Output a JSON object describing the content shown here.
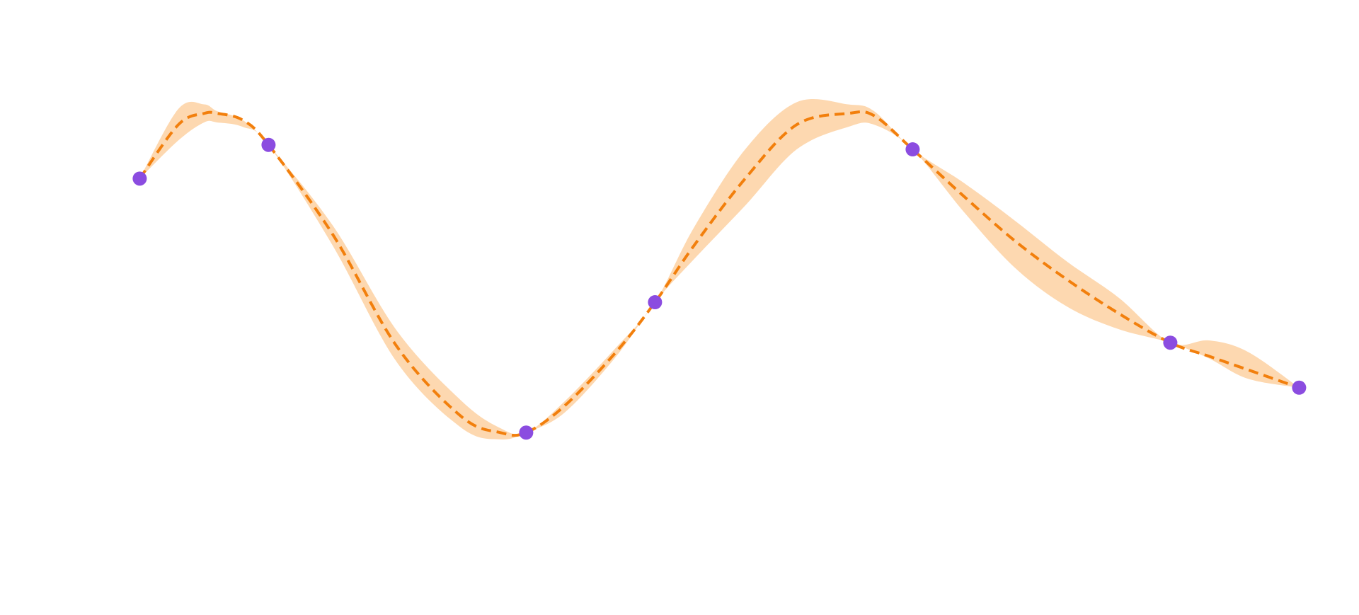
{
  "colors": {
    "band_fill": "#fdd8b0",
    "mean_line": "#f27f0c",
    "points": "#8b4ce0",
    "background": "#ffffff"
  },
  "chart_data": {
    "type": "line",
    "title": "",
    "xlabel": "",
    "ylabel": "",
    "axes_visible": false,
    "grid": false,
    "legend": "none",
    "xlim": [
      -0.35,
      4.65
    ],
    "ylim": [
      -1.3,
      1.25
    ],
    "series": [
      {
        "kind": "observations",
        "style": "markers",
        "x": [
          0,
          0.5,
          1.5,
          2,
          3,
          4,
          4.5
        ],
        "y": [
          0.55,
          0.7,
          -0.58,
          0,
          0.68,
          -0.18,
          -0.38
        ]
      },
      {
        "kind": "mean",
        "style": "dashed-line",
        "x": [
          0,
          0.15,
          0.25,
          0.3,
          0.4,
          0.5,
          0.75,
          1.0,
          1.25,
          1.4,
          1.5,
          1.65,
          1.85,
          2.0,
          2.15,
          2.35,
          2.55,
          2.75,
          2.85,
          3.0,
          3.2,
          3.4,
          3.6,
          3.8,
          4.0,
          4.15,
          4.3,
          4.5
        ],
        "y": [
          0.55,
          0.79,
          0.84,
          0.84,
          0.81,
          0.7,
          0.3,
          -0.2,
          -0.51,
          -0.58,
          -0.58,
          -0.46,
          -0.22,
          0.0,
          0.25,
          0.55,
          0.79,
          0.84,
          0.83,
          0.68,
          0.47,
          0.27,
          0.1,
          -0.05,
          -0.18,
          -0.24,
          -0.3,
          -0.38
        ]
      },
      {
        "kind": "confidence-band",
        "style": "filled-area",
        "x": [
          0,
          0.15,
          0.25,
          0.3,
          0.4,
          0.5,
          0.75,
          1.0,
          1.25,
          1.4,
          1.5,
          1.65,
          1.85,
          2.0,
          2.15,
          2.35,
          2.55,
          2.75,
          2.85,
          3.0,
          3.2,
          3.4,
          3.6,
          3.8,
          4.0,
          4.15,
          4.3,
          4.5
        ],
        "upper": [
          0.55,
          0.86,
          0.88,
          0.85,
          0.81,
          0.7,
          0.34,
          -0.13,
          -0.44,
          -0.56,
          -0.58,
          -0.44,
          -0.2,
          0.0,
          0.33,
          0.68,
          0.89,
          0.88,
          0.85,
          0.68,
          0.53,
          0.36,
          0.18,
          0.02,
          -0.18,
          -0.17,
          -0.22,
          -0.38
        ],
        "lower": [
          0.55,
          0.72,
          0.8,
          0.8,
          0.78,
          0.7,
          0.25,
          -0.27,
          -0.56,
          -0.61,
          -0.58,
          -0.49,
          -0.24,
          0.0,
          0.19,
          0.43,
          0.68,
          0.78,
          0.79,
          0.68,
          0.4,
          0.15,
          -0.02,
          -0.12,
          -0.18,
          -0.25,
          -0.34,
          -0.38
        ]
      }
    ]
  }
}
